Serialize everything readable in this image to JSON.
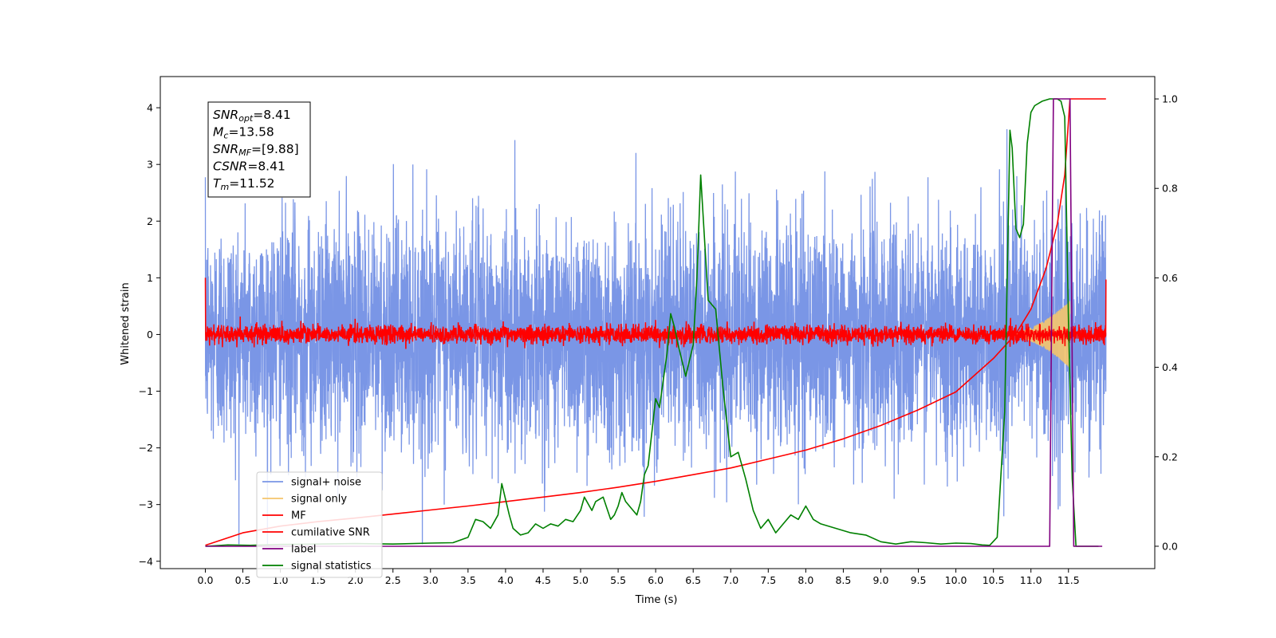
{
  "chart_data": {
    "type": "line",
    "title": "",
    "xlabel": "Time (s)",
    "ylabel": "Whitened strain",
    "xlim": [
      -0.6,
      12.65
    ],
    "ylim": [
      -4.13,
      4.55
    ],
    "y2lim": [
      -0.05,
      1.05
    ],
    "x_ticks": [
      0.0,
      0.5,
      1.0,
      1.5,
      2.0,
      2.5,
      3.0,
      3.5,
      4.0,
      4.5,
      5.0,
      5.5,
      6.0,
      6.5,
      7.0,
      7.5,
      8.0,
      8.5,
      9.0,
      9.5,
      10.0,
      10.5,
      11.0,
      11.5
    ],
    "x_tick_labels": [
      "0.0",
      "0.5",
      "1.0",
      "1.5",
      "2.0",
      "2.5",
      "3.0",
      "3.5",
      "4.0",
      "4.5",
      "5.0",
      "5.5",
      "6.0",
      "6.5",
      "7.0",
      "7.5",
      "8.0",
      "8.5",
      "9.0",
      "9.5",
      "10.0",
      "10.5",
      "11.0",
      "11.5"
    ],
    "y_ticks": [
      4,
      3,
      2,
      1,
      0,
      -1,
      -2,
      -3,
      -4
    ],
    "y_tick_labels": [
      "4",
      "3",
      "2",
      "1",
      "0",
      "−1",
      "−2",
      "−3",
      "−4"
    ],
    "y2_ticks": [
      1.0,
      0.8,
      0.6,
      0.4,
      0.2,
      0.0
    ],
    "y2_tick_labels": [
      "1.0",
      "0.8",
      "0.6",
      "0.4",
      "0.2",
      "0.0"
    ],
    "grid": false,
    "legend_position": "lower-left",
    "series": [
      {
        "name": "signal+ noise",
        "color": "#7a96e6",
        "axis": "left",
        "kind": "noise",
        "x_range": [
          0.0,
          12.0
        ],
        "description_std": 1.0
      },
      {
        "name": "signal only",
        "color": "#f5c56b",
        "axis": "left",
        "kind": "chirp",
        "x_range": [
          10.5,
          11.52
        ],
        "peak_amplitude": 0.6
      },
      {
        "name": "MF",
        "color": "#ff0000",
        "axis": "left",
        "kind": "noise",
        "x_range": [
          0.0,
          12.0
        ],
        "description_std": 0.08
      },
      {
        "name": "cumilative SNR",
        "color": "#ff0000",
        "axis": "right",
        "x": [
          0.0,
          0.5,
          1.0,
          1.5,
          2.0,
          2.5,
          3.0,
          3.5,
          4.0,
          4.5,
          5.0,
          5.5,
          6.0,
          6.5,
          7.0,
          7.5,
          8.0,
          8.5,
          9.0,
          9.5,
          10.0,
          10.5,
          10.8,
          11.0,
          11.2,
          11.35,
          11.45,
          11.52,
          12.0
        ],
        "y": [
          0.002,
          0.03,
          0.045,
          0.055,
          0.063,
          0.072,
          0.081,
          0.09,
          0.1,
          0.11,
          0.12,
          0.132,
          0.145,
          0.16,
          0.175,
          0.195,
          0.215,
          0.24,
          0.27,
          0.305,
          0.345,
          0.42,
          0.475,
          0.53,
          0.62,
          0.72,
          0.83,
          1.0,
          1.0
        ]
      },
      {
        "name": "label",
        "color": "#800080",
        "axis": "right",
        "x": [
          0.0,
          11.25,
          11.3,
          11.52,
          11.57,
          11.95
        ],
        "y": [
          0.0,
          0.0,
          1.0,
          1.0,
          0.0,
          0.0
        ]
      },
      {
        "name": "signal statistics",
        "color": "#008000",
        "axis": "right",
        "x": [
          0.0,
          0.3,
          0.6,
          1.0,
          1.5,
          2.0,
          2.5,
          3.0,
          3.3,
          3.5,
          3.6,
          3.7,
          3.8,
          3.9,
          3.95,
          4.05,
          4.1,
          4.2,
          4.3,
          4.4,
          4.5,
          4.6,
          4.7,
          4.8,
          4.9,
          5.0,
          5.05,
          5.15,
          5.2,
          5.3,
          5.4,
          5.45,
          5.5,
          5.55,
          5.6,
          5.7,
          5.75,
          5.8,
          5.85,
          5.9,
          6.0,
          6.05,
          6.1,
          6.15,
          6.2,
          6.25,
          6.3,
          6.4,
          6.5,
          6.55,
          6.6,
          6.7,
          6.8,
          6.9,
          7.0,
          7.1,
          7.2,
          7.3,
          7.4,
          7.5,
          7.6,
          7.7,
          7.8,
          7.9,
          8.0,
          8.1,
          8.2,
          8.4,
          8.6,
          8.8,
          9.0,
          9.2,
          9.4,
          9.6,
          9.8,
          10.0,
          10.2,
          10.35,
          10.45,
          10.55,
          10.65,
          10.72,
          10.75,
          10.8,
          10.85,
          10.9,
          10.95,
          11.0,
          11.05,
          11.15,
          11.25,
          11.35,
          11.4,
          11.45,
          11.5,
          11.55,
          11.6,
          11.65,
          11.75,
          11.9
        ],
        "y": [
          0.0,
          0.003,
          0.002,
          0.004,
          0.005,
          0.006,
          0.005,
          0.007,
          0.008,
          0.02,
          0.06,
          0.055,
          0.04,
          0.07,
          0.14,
          0.07,
          0.04,
          0.025,
          0.03,
          0.05,
          0.04,
          0.05,
          0.045,
          0.06,
          0.055,
          0.08,
          0.11,
          0.08,
          0.1,
          0.11,
          0.06,
          0.07,
          0.09,
          0.12,
          0.1,
          0.08,
          0.07,
          0.1,
          0.16,
          0.18,
          0.33,
          0.31,
          0.37,
          0.43,
          0.52,
          0.49,
          0.45,
          0.38,
          0.45,
          0.6,
          0.83,
          0.55,
          0.53,
          0.35,
          0.2,
          0.21,
          0.15,
          0.08,
          0.04,
          0.06,
          0.03,
          0.05,
          0.07,
          0.06,
          0.09,
          0.06,
          0.05,
          0.04,
          0.03,
          0.025,
          0.01,
          0.005,
          0.01,
          0.008,
          0.005,
          0.007,
          0.006,
          0.003,
          0.002,
          0.02,
          0.3,
          0.93,
          0.89,
          0.71,
          0.69,
          0.72,
          0.9,
          0.97,
          0.985,
          0.995,
          1.0,
          1.0,
          0.995,
          0.96,
          0.5,
          0.15,
          0.0,
          0.0,
          0.0,
          0.0
        ]
      }
    ],
    "annotation_box": {
      "lines": [
        {
          "label": "SNR",
          "sub": "opt",
          "value": "=8.41"
        },
        {
          "label": "M",
          "sub": "c",
          "value": "=13.58"
        },
        {
          "label": "SNR",
          "sub": "MF",
          "value": "=[9.88]"
        },
        {
          "label": "CSNR",
          "sub": "",
          "value": "=8.41"
        },
        {
          "label": "T",
          "sub": "m",
          "value": "=11.52"
        }
      ]
    }
  }
}
